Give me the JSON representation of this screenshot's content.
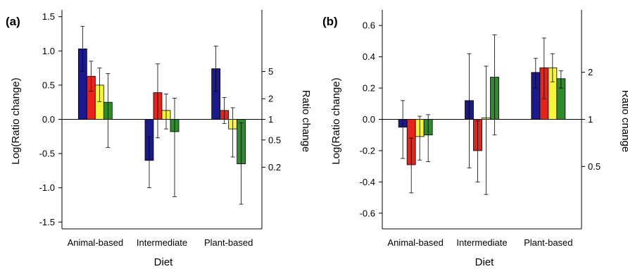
{
  "chart_data": [
    {
      "type": "bar",
      "panel_label": "(a)",
      "categories": [
        "Animal-based",
        "Intermediate",
        "Plant-based"
      ],
      "xlabel": "Diet",
      "ylabel": "Log(Ratio change)",
      "ylabel_right": "Ratio change",
      "ylim": [
        -1.6,
        1.6
      ],
      "yticks": [
        -1.5,
        -1.0,
        -0.5,
        0.0,
        0.5,
        1.0,
        1.5
      ],
      "ytick_labels": [
        "-1.5",
        "-1.0",
        "-0.5",
        "0.0",
        "0.5",
        "1.0",
        "1.5"
      ],
      "right_ticks": [
        0.2,
        0.5,
        1,
        2,
        5
      ],
      "right_tick_labels": [
        "0.2",
        "0.5",
        "1",
        "2",
        "5"
      ],
      "grid": false,
      "series": [
        {
          "color": "#1a1a8c",
          "values": [
            1.03,
            -0.6,
            0.74
          ],
          "err_high": [
            1.36,
            -0.26,
            1.07
          ],
          "err_low": [
            0.7,
            -1.0,
            0.41
          ]
        },
        {
          "color": "#e8231c",
          "values": [
            0.63,
            0.39,
            0.13
          ],
          "err_high": [
            0.85,
            0.81,
            0.32
          ],
          "err_low": [
            0.41,
            -0.27,
            -0.06
          ]
        },
        {
          "color": "#f5f53a",
          "values": [
            0.5,
            0.13,
            -0.14
          ],
          "err_high": [
            0.75,
            0.37,
            0.17
          ],
          "err_low": [
            0.26,
            -0.14,
            -0.55
          ]
        },
        {
          "color": "#2e8b2e",
          "values": [
            0.25,
            -0.18,
            -0.65
          ],
          "err_high": [
            0.67,
            0.31,
            -0.05
          ],
          "err_low": [
            -0.41,
            -1.13,
            -1.24
          ]
        }
      ]
    },
    {
      "type": "bar",
      "panel_label": "(b)",
      "categories": [
        "Animal-based",
        "Intermediate",
        "Plant-based"
      ],
      "xlabel": "Diet",
      "ylabel": "Log(Ratio change)",
      "ylabel_right": "Ratio change",
      "ylim": [
        -0.7,
        0.7
      ],
      "yticks": [
        -0.6,
        -0.4,
        -0.2,
        0.0,
        0.2,
        0.4,
        0.6
      ],
      "ytick_labels": [
        "-0.6",
        "-0.4",
        "-0.2",
        "0.0",
        "0.2",
        "0.4",
        "0.6"
      ],
      "right_ticks": [
        0.5,
        1,
        2
      ],
      "right_tick_labels": [
        "0.5",
        "1",
        "2"
      ],
      "grid": false,
      "series": [
        {
          "color": "#1a1a8c",
          "values": [
            -0.05,
            0.12,
            0.3
          ],
          "err_high": [
            0.12,
            0.42,
            0.39
          ],
          "err_low": [
            -0.25,
            -0.31,
            0.2
          ]
        },
        {
          "color": "#e8231c",
          "values": [
            -0.29,
            -0.2,
            0.33
          ],
          "err_high": [
            -0.12,
            -0.01,
            0.52
          ],
          "err_low": [
            -0.47,
            -0.4,
            0.13
          ]
        },
        {
          "color": "#f5f53a",
          "values": [
            -0.11,
            0.01,
            0.33
          ],
          "err_high": [
            0.02,
            0.34,
            0.42
          ],
          "err_low": [
            -0.26,
            -0.48,
            0.24
          ]
        },
        {
          "color": "#2e8b2e",
          "values": [
            -0.1,
            0.27,
            0.26
          ],
          "err_high": [
            0.03,
            0.54,
            0.31
          ],
          "err_low": [
            -0.27,
            -0.1,
            0.2
          ]
        }
      ]
    }
  ]
}
